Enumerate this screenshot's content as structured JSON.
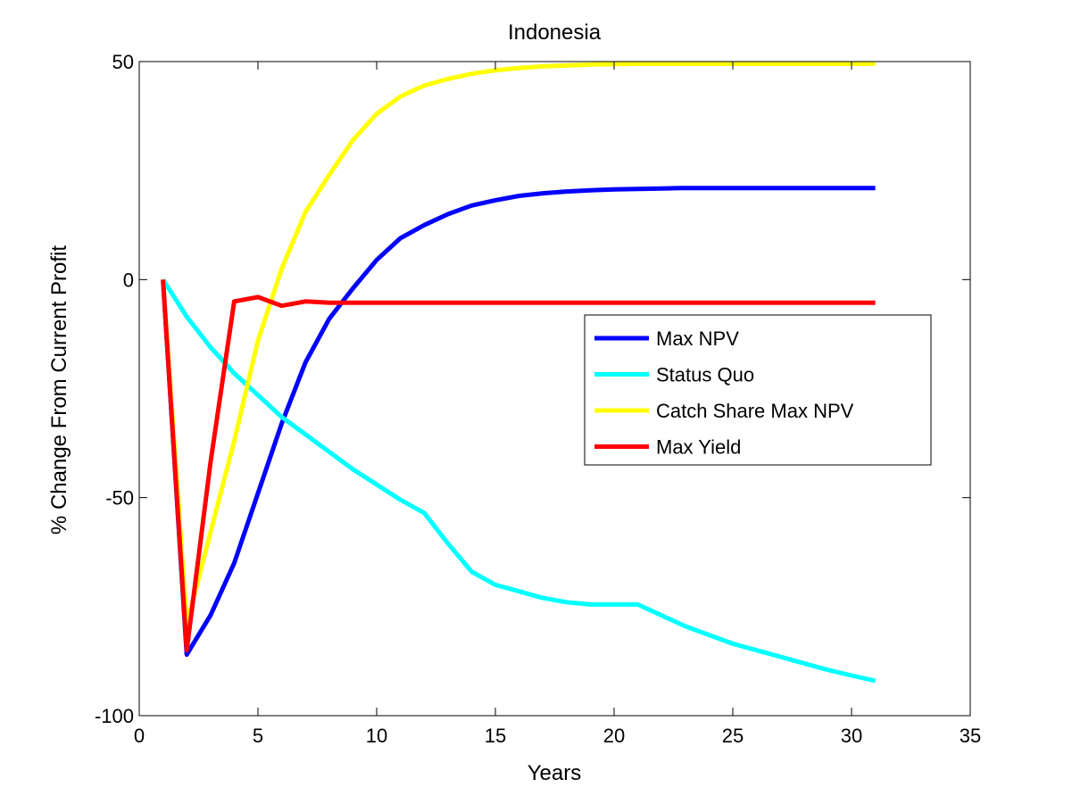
{
  "chart_data": {
    "type": "line",
    "title": "Indonesia",
    "xlabel": "Years",
    "ylabel": "% Change From Current Profit",
    "xlim": [
      0,
      35
    ],
    "ylim": [
      -100,
      50
    ],
    "xticks": [
      "0",
      "5",
      "10",
      "15",
      "20",
      "25",
      "30",
      "35"
    ],
    "yticks": [
      "50",
      "0",
      "-50",
      "-100"
    ],
    "grid": false,
    "legend_position": "right",
    "x": [
      1,
      2,
      3,
      4,
      5,
      6,
      7,
      8,
      9,
      10,
      11,
      12,
      13,
      14,
      15,
      16,
      17,
      18,
      19,
      20,
      21,
      22,
      23,
      24,
      25,
      26,
      27,
      28,
      29,
      30,
      31
    ],
    "series": [
      {
        "name": "Max NPV",
        "color": "#0000ff",
        "values": [
          0,
          -86,
          -77,
          -65,
          -49,
          -33,
          -19,
          -9,
          -2,
          4.5,
          9.5,
          12.5,
          15,
          17,
          18.2,
          19.2,
          19.8,
          20.2,
          20.5,
          20.7,
          20.8,
          20.9,
          21,
          21,
          21,
          21,
          21,
          21,
          21,
          21,
          21
        ]
      },
      {
        "name": "Status Quo",
        "color": "#00ffff",
        "values": [
          0,
          -8.5,
          -15.5,
          -21.5,
          -26.5,
          -31.5,
          -35.5,
          -39.5,
          -43.5,
          -47,
          -50.5,
          -53.5,
          -60.5,
          -67,
          -70,
          -71.5,
          -73,
          -74,
          -74.5,
          -74.5,
          -74.5,
          -77,
          -79.5,
          -81.5,
          -83.5,
          -85,
          -86.5,
          -88,
          -89.5,
          -90.8,
          -92
        ]
      },
      {
        "name": "Catch Share Max NPV",
        "color": "#ffff00",
        "values": [
          0,
          -79,
          -58,
          -37,
          -14,
          2.5,
          15.5,
          24,
          32,
          38,
          42,
          44.5,
          46,
          47.2,
          48,
          48.5,
          48.9,
          49.1,
          49.3,
          49.4,
          49.5,
          49.5,
          49.5,
          49.5,
          49.5,
          49.5,
          49.5,
          49.5,
          49.5,
          49.5,
          49.5
        ]
      },
      {
        "name": "Max Yield",
        "color": "#ff0000",
        "values": [
          0,
          -85,
          -42,
          -5,
          -4,
          -6,
          -5,
          -5.3,
          -5.3,
          -5.3,
          -5.3,
          -5.3,
          -5.3,
          -5.3,
          -5.3,
          -5.3,
          -5.3,
          -5.3,
          -5.3,
          -5.3,
          -5.3,
          -5.3,
          -5.3,
          -5.3,
          -5.3,
          -5.3,
          -5.3,
          -5.3,
          -5.3,
          -5.3,
          -5.3
        ]
      }
    ]
  }
}
